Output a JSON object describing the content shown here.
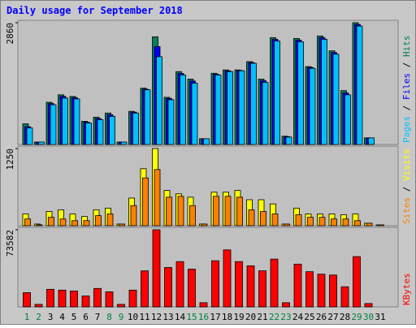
{
  "chart_data": [
    {
      "type": "bar",
      "title": "Daily usage for September 2018",
      "legend_separator": " / ",
      "ylim": [
        0,
        2860
      ],
      "yticks": [
        2860
      ],
      "series": [
        {
          "name": "Hits",
          "color": "#00805c",
          "values": [
            486,
            58,
            992,
            1167,
            1128,
            545,
            642,
            739,
            58,
            778,
            1323,
            2529,
            1109,
            1712,
            1537,
            136,
            1673,
            1751,
            1751,
            1946,
            1537,
            2510,
            195,
            2490,
            1829,
            2549,
            2199,
            1265,
            2860,
            156,
            0
          ]
        },
        {
          "name": "Files",
          "color": "#0000ff",
          "values": [
            420,
            58,
            960,
            1130,
            1100,
            525,
            610,
            700,
            58,
            760,
            1300,
            2300,
            1080,
            1670,
            1490,
            136,
            1650,
            1730,
            1740,
            1925,
            1500,
            2470,
            185,
            2450,
            1810,
            2510,
            2160,
            1210,
            2820,
            156,
            0
          ]
        },
        {
          "name": "Pages",
          "color": "#00c0ff",
          "values": [
            389,
            58,
            934,
            1090,
            1070,
            506,
            584,
            661,
            58,
            739,
            1284,
            2062,
            1051,
            1634,
            1440,
            136,
            1634,
            1712,
            1732,
            1907,
            1459,
            2432,
            175,
            2413,
            1790,
            2471,
            2121,
            1167,
            2782,
            156,
            0
          ]
        }
      ]
    },
    {
      "type": "bar",
      "ylim": [
        0,
        1250
      ],
      "yticks": [
        1250
      ],
      "series": [
        {
          "name": "Visits",
          "color": "#ffff00",
          "values": [
            190,
            27,
            231,
            258,
            190,
            149,
            258,
            285,
            27,
            448,
            924,
            1250,
            571,
            516,
            462,
            27,
            543,
            543,
            571,
            421,
            421,
            353,
            27,
            285,
            190,
            190,
            190,
            177,
            190,
            41,
            14
          ]
        },
        {
          "name": "Sites",
          "color": "#ff8000",
          "values": [
            109,
            14,
            136,
            109,
            82,
            82,
            163,
            190,
            27,
            326,
            774,
            910,
            462,
            476,
            326,
            27,
            476,
            476,
            462,
            258,
            231,
            190,
            27,
            177,
            136,
            136,
            109,
            109,
            82,
            41,
            14
          ]
        }
      ]
    },
    {
      "type": "bar",
      "ylim": [
        0,
        73582
      ],
      "yticks": [
        73582
      ],
      "categories": [
        "1",
        "2",
        "3",
        "4",
        "5",
        "6",
        "7",
        "8",
        "9",
        "10",
        "11",
        "12",
        "13",
        "14",
        "15",
        "16",
        "17",
        "18",
        "19",
        "20",
        "21",
        "22",
        "23",
        "24",
        "25",
        "26",
        "27",
        "28",
        "29",
        "30",
        "31"
      ],
      "category_colors": [
        "#008040",
        "#008040",
        "#000000",
        "#000000",
        "#000000",
        "#000000",
        "#000000",
        "#008040",
        "#008040",
        "#000000",
        "#000000",
        "#000000",
        "#000000",
        "#000000",
        "#008040",
        "#008040",
        "#000000",
        "#000000",
        "#000000",
        "#000000",
        "#000000",
        "#008040",
        "#008040",
        "#000000",
        "#000000",
        "#000000",
        "#000000",
        "#000000",
        "#008040",
        "#008040",
        "#000000"
      ],
      "series": [
        {
          "name": "KBytes",
          "color": "#ff0000",
          "values": [
            13597,
            2399,
            16796,
            15996,
            15196,
            10397,
            17596,
            14396,
            2399,
            15996,
            34391,
            73582,
            37591,
            43189,
            35991,
            3999,
            43989,
            54386,
            43189,
            39190,
            34391,
            45588,
            3999,
            40790,
            33592,
            31192,
            30392,
            19195,
            47988,
            3199,
            0
          ]
        }
      ]
    }
  ]
}
